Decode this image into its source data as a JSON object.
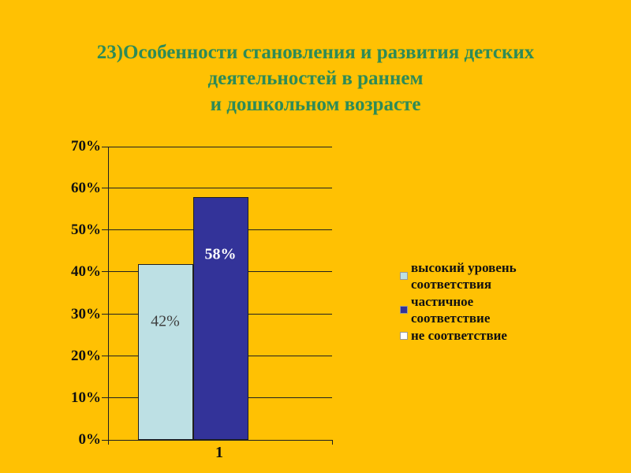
{
  "slide": {
    "background_color": "#FFC103",
    "title_color": "#2E8B57",
    "title_lines": [
      "23)Особенности становления и развития детских",
      "деятельностей в раннем",
      "и дошкольном возрасте"
    ]
  },
  "chart_data": {
    "type": "bar",
    "title": "",
    "xlabel": "",
    "ylabel": "",
    "categories": [
      "1"
    ],
    "series": [
      {
        "name": "высокий уровень соответствия",
        "values": [
          42
        ],
        "color": "#BDE0E4",
        "data_label": "42%",
        "label_color": "#3F3F3F",
        "label_bold": false
      },
      {
        "name": "частичное соответствие",
        "values": [
          58
        ],
        "color": "#333399",
        "data_label": "58%",
        "label_color": "#FFFFFF",
        "label_bold": true
      },
      {
        "name": "не соответствие",
        "values": [
          0
        ],
        "color": "#FFFFFF",
        "data_label": "",
        "label_color": "",
        "label_bold": false
      }
    ],
    "ylim": [
      0,
      70
    ],
    "ytick_step": 10,
    "ytick_labels": [
      "0%",
      "10%",
      "20%",
      "30%",
      "40%",
      "50%",
      "60%",
      "70%"
    ],
    "grid": true,
    "legend_position": "right",
    "axis_color": "#1f1f1f"
  }
}
